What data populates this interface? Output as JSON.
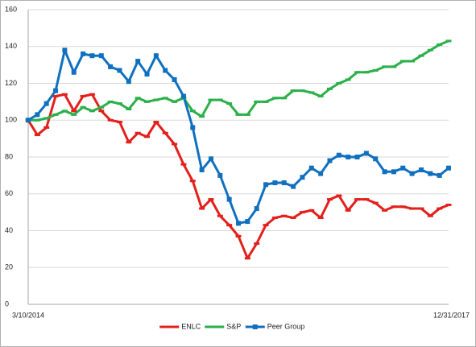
{
  "chart_data": {
    "type": "line",
    "categories": [
      "3/10/2014",
      null,
      null,
      null,
      null,
      null,
      null,
      null,
      null,
      null,
      null,
      null,
      null,
      null,
      null,
      null,
      null,
      null,
      null,
      null,
      null,
      null,
      null,
      null,
      null,
      null,
      null,
      null,
      null,
      null,
      null,
      null,
      null,
      null,
      null,
      null,
      null,
      null,
      null,
      null,
      null,
      null,
      null,
      null,
      null,
      null,
      "12/31/2017"
    ],
    "series": [
      {
        "name": "ENLC",
        "color": "#e3201b",
        "values": [
          100,
          92,
          96,
          113,
          114,
          105,
          113,
          114,
          105,
          100,
          99,
          88,
          93,
          91,
          99,
          93,
          87,
          76,
          67,
          52,
          57,
          48,
          43,
          37,
          25,
          33,
          43,
          47,
          48,
          47,
          50,
          51,
          47,
          57,
          59,
          51,
          57,
          57,
          55,
          51,
          53,
          53,
          52,
          52,
          48,
          52,
          54
        ]
      },
      {
        "name": "S&P",
        "color": "#2bb04a",
        "values": [
          100,
          100,
          101,
          103,
          105,
          103,
          107,
          105,
          107,
          110,
          109,
          106,
          112,
          110,
          111,
          112,
          110,
          112,
          105,
          102,
          111,
          111,
          109,
          103,
          103,
          110,
          110,
          112,
          112,
          116,
          116,
          115,
          113,
          117,
          120,
          122,
          126,
          126,
          127,
          129,
          129,
          132,
          132,
          135,
          138,
          141,
          143
        ]
      },
      {
        "name": "Peer Group",
        "color": "#1070c0",
        "values": [
          100,
          103,
          109,
          116,
          138,
          126,
          136,
          135,
          135,
          129,
          127,
          121,
          132,
          125,
          135,
          127,
          122,
          113,
          96,
          73,
          79,
          70,
          57,
          44,
          45,
          52,
          65,
          66,
          66,
          64,
          69,
          74,
          71,
          78,
          81,
          80,
          80,
          82,
          79,
          72,
          72,
          74,
          71,
          73,
          71,
          70,
          74
        ]
      }
    ],
    "ylim": [
      0,
      160
    ],
    "yticks": [
      0,
      20,
      40,
      60,
      80,
      100,
      120,
      140,
      160
    ],
    "grid": true
  }
}
